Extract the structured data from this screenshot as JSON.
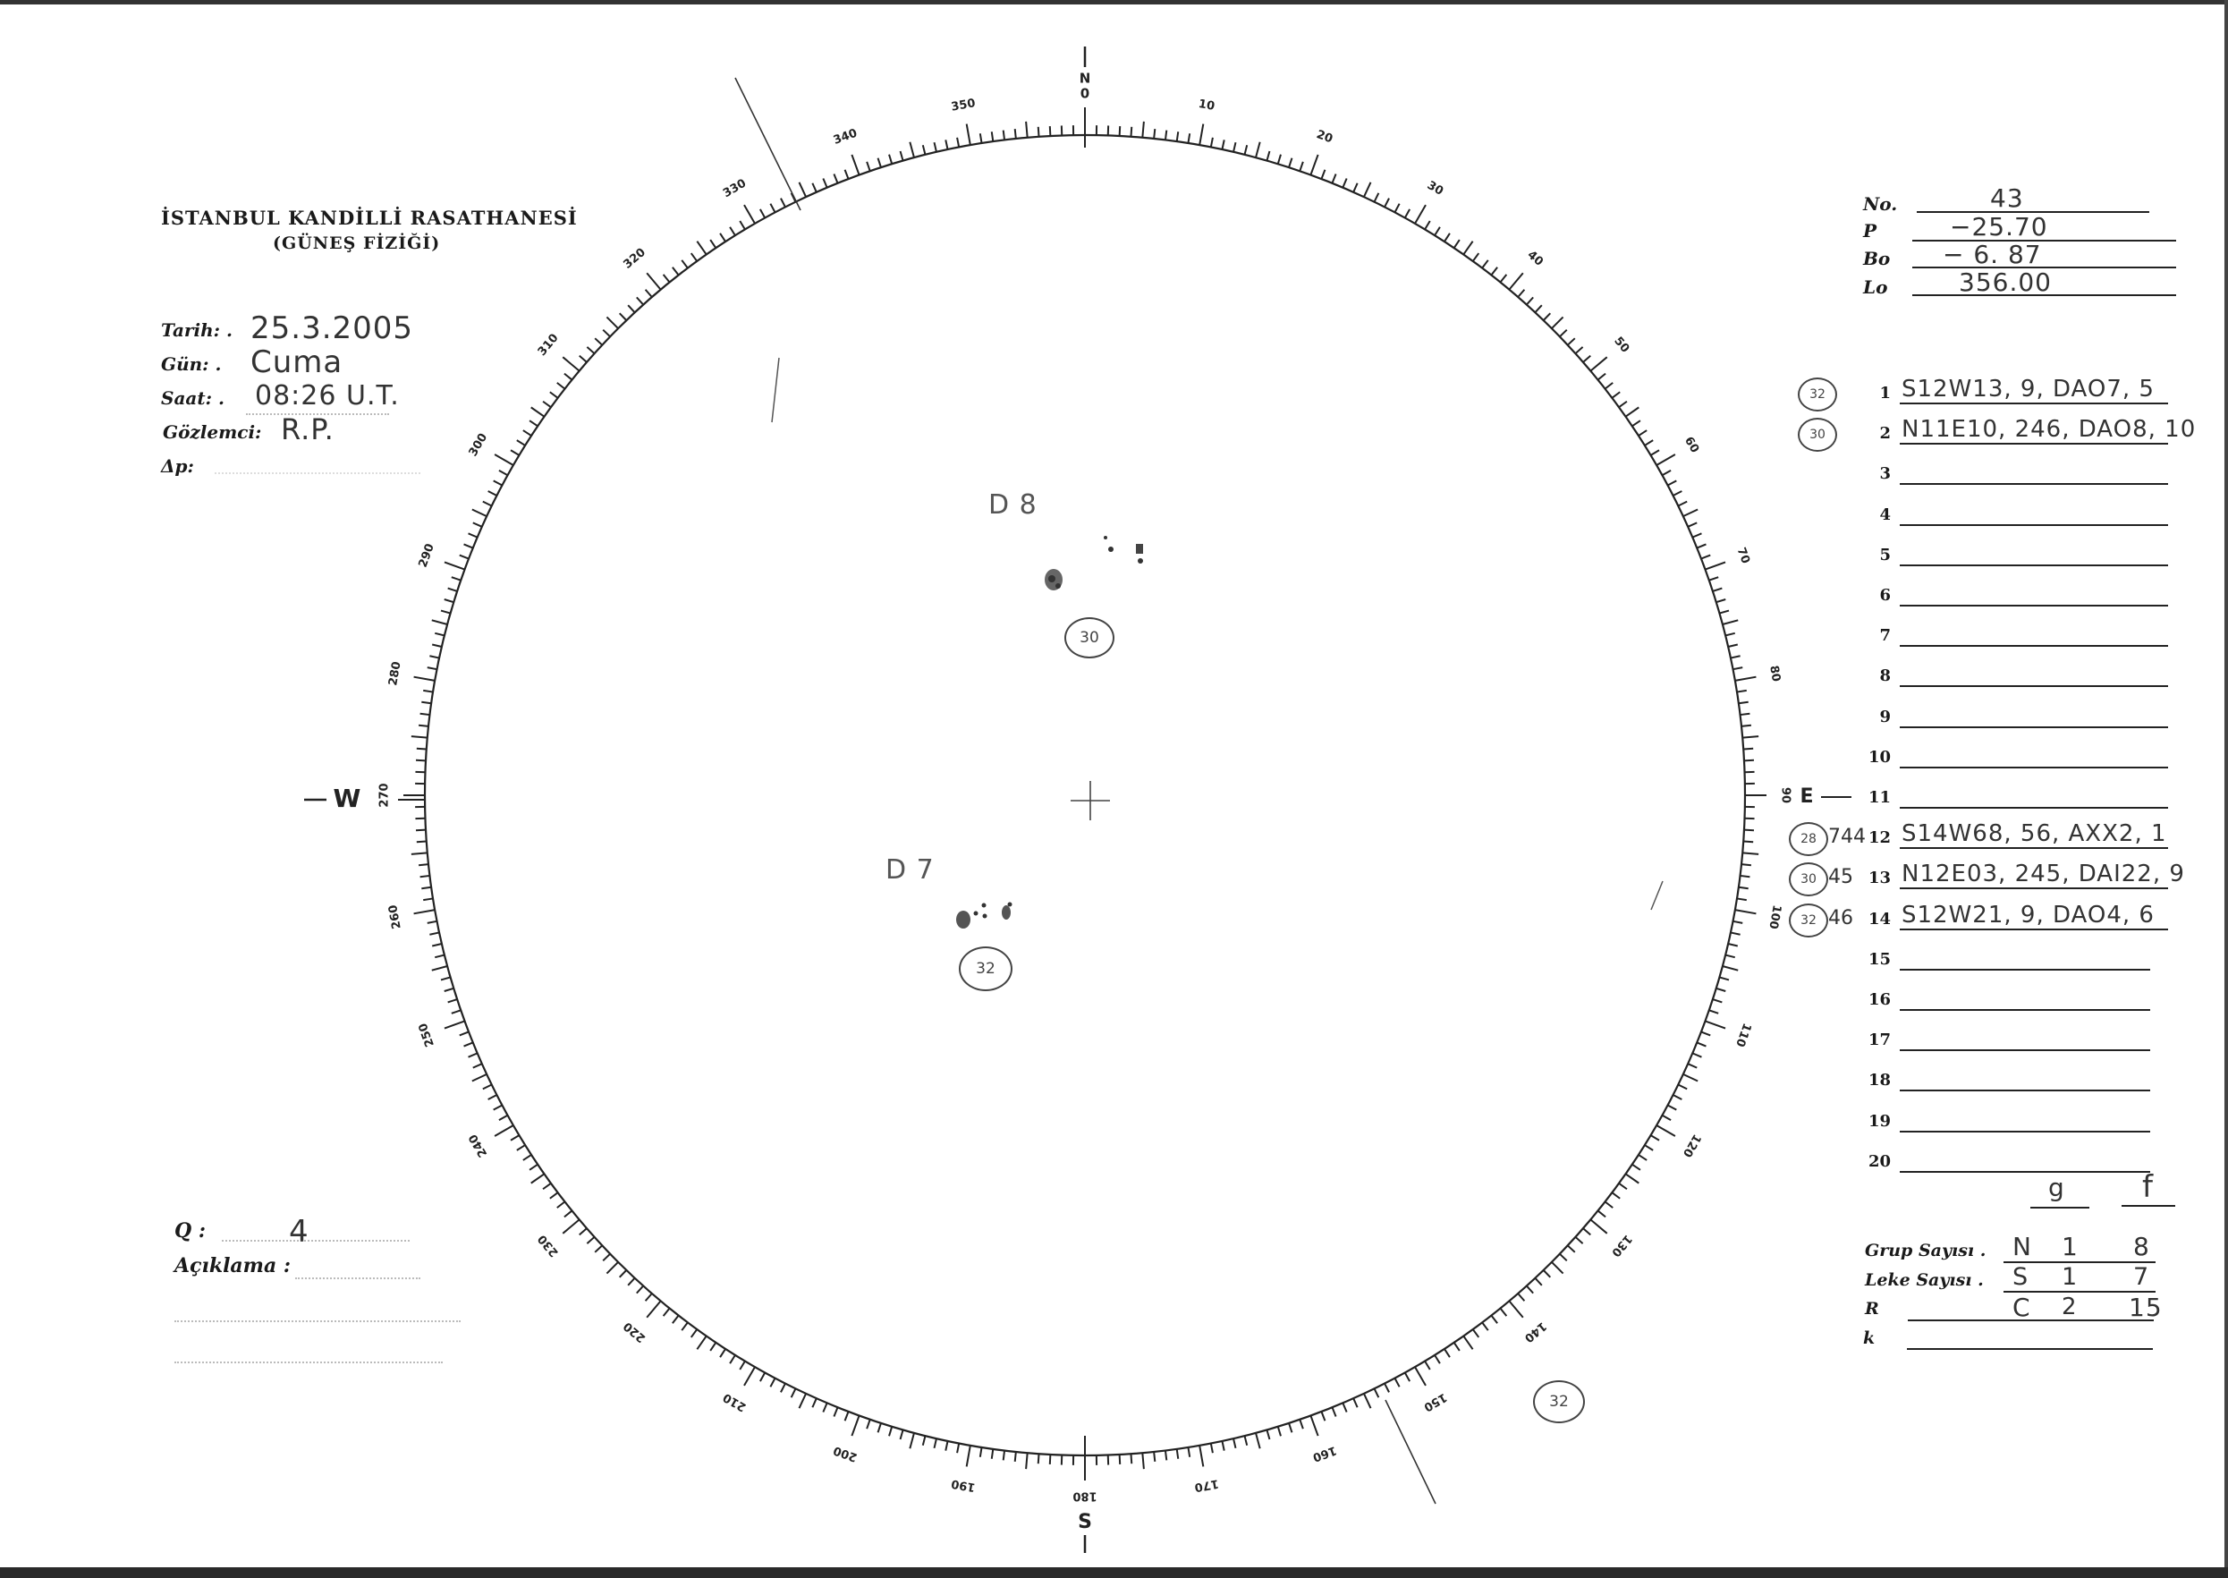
{
  "header": {
    "institution": "İSTANBUL KANDİLLİ RASATHANESİ",
    "department": "(GÜNEŞ FİZİĞİ)"
  },
  "observation": {
    "date_label": "Tarih: .",
    "date_value": "25.3.2005",
    "day_label": "Gün: .",
    "day_value": "Cuma",
    "time_label": "Saat: .",
    "time_value": "08:26 U.T.",
    "observer_label": "Gözlemci:",
    "observer_value": "R.P.",
    "delta_p_label": "Δp:"
  },
  "quality": {
    "q_label": "Q :",
    "q_value": "4",
    "remarks_label": "Açıklama :"
  },
  "ephemeris": {
    "no_label": "No.",
    "no_value": "43",
    "p_label": "P",
    "p_value": "−25.70",
    "bo_label": "Bo",
    "bo_value": "− 6. 87",
    "lo_label": "Lo",
    "lo_value": "356.00"
  },
  "groups": [
    {
      "n": "1",
      "circled": "32",
      "note": "",
      "value": "S12W13, 9, DAO7, 5"
    },
    {
      "n": "2",
      "circled": "30",
      "note": "",
      "value": "N11E10, 246, DAO8, 10"
    },
    {
      "n": "3",
      "circled": "",
      "note": "",
      "value": ""
    },
    {
      "n": "4",
      "circled": "",
      "note": "",
      "value": ""
    },
    {
      "n": "5",
      "circled": "",
      "note": "",
      "value": ""
    },
    {
      "n": "6",
      "circled": "",
      "note": "",
      "value": ""
    },
    {
      "n": "7",
      "circled": "",
      "note": "",
      "value": ""
    },
    {
      "n": "8",
      "circled": "",
      "note": "",
      "value": ""
    },
    {
      "n": "9",
      "circled": "",
      "note": "",
      "value": ""
    },
    {
      "n": "10",
      "circled": "",
      "note": "",
      "value": ""
    },
    {
      "n": "11",
      "circled": "",
      "note": "",
      "value": ""
    },
    {
      "n": "12",
      "circled": "28",
      "note": "744",
      "value": "S14W68, 56, AXX2, 1"
    },
    {
      "n": "13",
      "circled": "30",
      "note": "45",
      "value": "N12E03, 245, DAI22, 9"
    },
    {
      "n": "14",
      "circled": "32",
      "note": "46",
      "value": "S12W21, 9, DAO4, 6"
    },
    {
      "n": "15",
      "circled": "",
      "note": "",
      "value": ""
    },
    {
      "n": "16",
      "circled": "",
      "note": "",
      "value": ""
    },
    {
      "n": "17",
      "circled": "",
      "note": "",
      "value": ""
    },
    {
      "n": "18",
      "circled": "",
      "note": "",
      "value": ""
    },
    {
      "n": "19",
      "circled": "",
      "note": "",
      "value": ""
    },
    {
      "n": "20",
      "circled": "",
      "note": "",
      "value": ""
    }
  ],
  "counts": {
    "g_header": "g",
    "f_header": "f",
    "group_count_label": "Grup Sayısı .",
    "spot_count_label": "Leke Sayısı .",
    "r_label": "R",
    "k_label": "k",
    "row_n": {
      "hemisphere": "N",
      "g": "1",
      "f": "8"
    },
    "row_s": {
      "hemisphere": "S",
      "g": "1",
      "f": "7"
    },
    "row_c": {
      "hemisphere": "C",
      "g": "2",
      "f": "15"
    }
  },
  "dial": {
    "tick_labels": [
      "0",
      "10",
      "20",
      "30",
      "40",
      "50",
      "60",
      "70",
      "80",
      "90",
      "100",
      "110",
      "120",
      "130",
      "140",
      "150",
      "160",
      "170",
      "180",
      "190",
      "200",
      "210",
      "220",
      "230",
      "240",
      "250",
      "260",
      "270",
      "280",
      "290",
      "300",
      "310",
      "320",
      "330",
      "340",
      "350"
    ],
    "north": "N",
    "south": "S",
    "east": "E",
    "west": "W"
  },
  "disk_annotations": {
    "north_group_label": "D 8",
    "north_group_circled": "30",
    "south_group_label": "D 7",
    "south_group_circled": "32",
    "outside_circled": "32"
  }
}
